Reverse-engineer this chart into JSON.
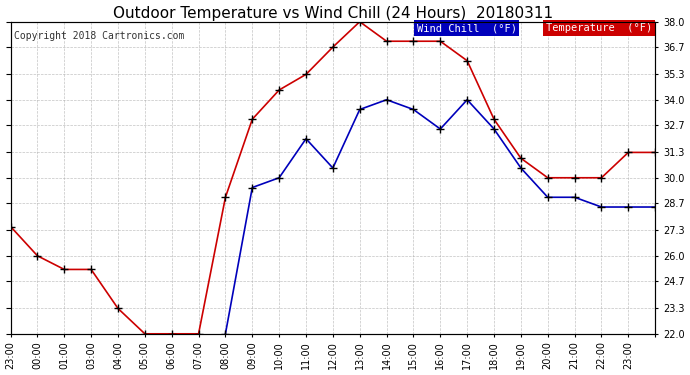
{
  "title": "Outdoor Temperature vs Wind Chill (24 Hours)  20180311",
  "copyright": "Copyright 2018 Cartronics.com",
  "background_color": "#ffffff",
  "plot_bg_color": "#ffffff",
  "grid_color": "#aaaaaa",
  "wind_chill_color": "#0000bb",
  "temperature_color": "#cc0000",
  "legend_wc_bg": "#0000bb",
  "legend_temp_bg": "#cc0000",
  "legend_wc_text": "Wind Chill  (°F)",
  "legend_temp_text": "Temperature  (°F)",
  "ylim_min": 22.0,
  "ylim_max": 38.0,
  "yticks": [
    22.0,
    23.3,
    24.7,
    26.0,
    27.3,
    28.7,
    30.0,
    31.3,
    32.7,
    34.0,
    35.3,
    36.7,
    38.0
  ],
  "temp_x": [
    0,
    1,
    2,
    3,
    4,
    5,
    6,
    7,
    8,
    9,
    10,
    11,
    12,
    13,
    14,
    15,
    16,
    17,
    18,
    19,
    20,
    21,
    22,
    23,
    24
  ],
  "temp_values": [
    27.5,
    26.0,
    25.3,
    25.3,
    23.3,
    22.0,
    22.0,
    22.0,
    29.0,
    33.0,
    34.5,
    35.3,
    36.7,
    38.0,
    37.0,
    37.0,
    37.0,
    36.0,
    33.0,
    31.0,
    30.0,
    30.0,
    30.0,
    31.3,
    31.3
  ],
  "wc_x": [
    8,
    9,
    10,
    11,
    12,
    13,
    14,
    15,
    16,
    17,
    18,
    19,
    20,
    21,
    22,
    23,
    24
  ],
  "wc_values": [
    22.0,
    29.5,
    30.0,
    32.0,
    30.5,
    33.5,
    34.0,
    33.5,
    32.5,
    34.0,
    32.5,
    30.5,
    29.0,
    29.0,
    28.5,
    28.5,
    28.5
  ],
  "xtick_positions": [
    0,
    1,
    2,
    3,
    4,
    5,
    6,
    7,
    8,
    9,
    10,
    11,
    12,
    13,
    14,
    15,
    16,
    17,
    18,
    19,
    20,
    21,
    22,
    23,
    24
  ],
  "xtick_labels": [
    "23:00",
    "00:00",
    "01:00",
    "03:00",
    "04:00",
    "05:00",
    "06:00",
    "07:00",
    "08:00",
    "09:00",
    "10:00",
    "11:00",
    "12:00",
    "13:00",
    "14:00",
    "15:00",
    "16:00",
    "17:00",
    "18:00",
    "19:00",
    "20:00",
    "21:00",
    "22:00",
    "23:00",
    "23:00"
  ],
  "marker": "+",
  "marker_color": "#000000",
  "marker_size": 6,
  "linewidth": 1.2,
  "title_fontsize": 11,
  "tick_fontsize": 7,
  "copyright_fontsize": 7,
  "legend_fontsize": 7.5
}
